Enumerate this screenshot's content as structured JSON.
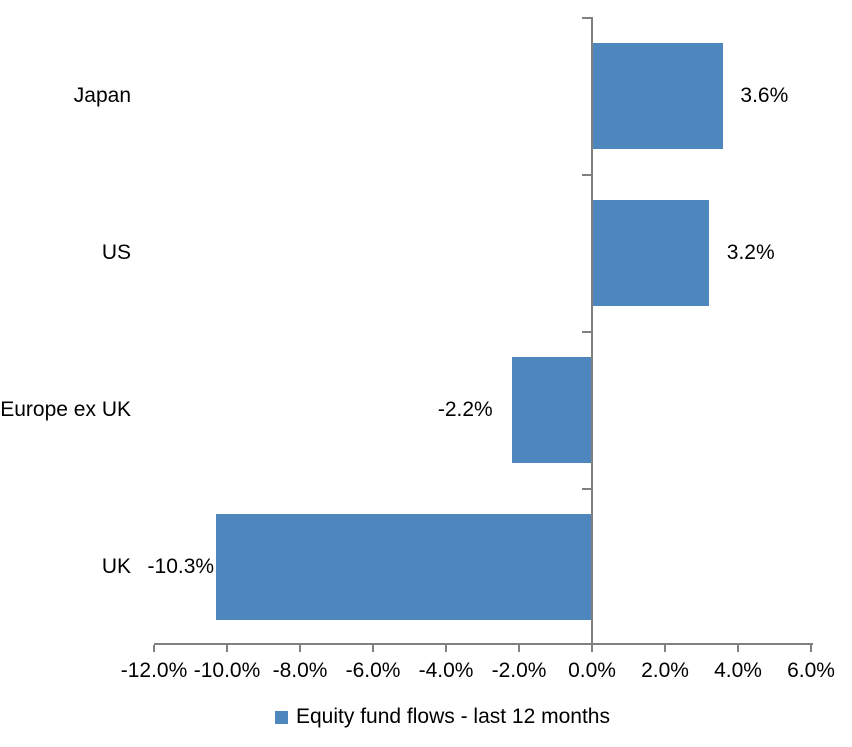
{
  "chart_data": {
    "type": "bar",
    "orientation": "horizontal",
    "title": "",
    "categories": [
      "Japan",
      "US",
      "Europe ex UK",
      "UK"
    ],
    "series": [
      {
        "name": "Equity fund flows - last 12 months",
        "values": [
          3.6,
          3.2,
          -2.2,
          -10.3
        ],
        "value_labels": [
          "3.6%",
          "3.2%",
          "-2.2%",
          "-10.3%"
        ]
      }
    ],
    "xlabel": "",
    "ylabel": "",
    "xlim": [
      -12,
      6
    ],
    "x_tick_step": 2,
    "x_tick_labels": [
      "-12.0%",
      "-10.0%",
      "-8.0%",
      "-6.0%",
      "-4.0%",
      "-2.0%",
      "0.0%",
      "2.0%",
      "4.0%",
      "6.0%"
    ],
    "grid": false,
    "legend": {
      "position": "bottom",
      "label": "Equity fund flows - last 12 months"
    },
    "colors": {
      "bar": "#4E86BE",
      "axis": "#808080",
      "text": "#000000",
      "background": "#FFFFFF"
    }
  }
}
